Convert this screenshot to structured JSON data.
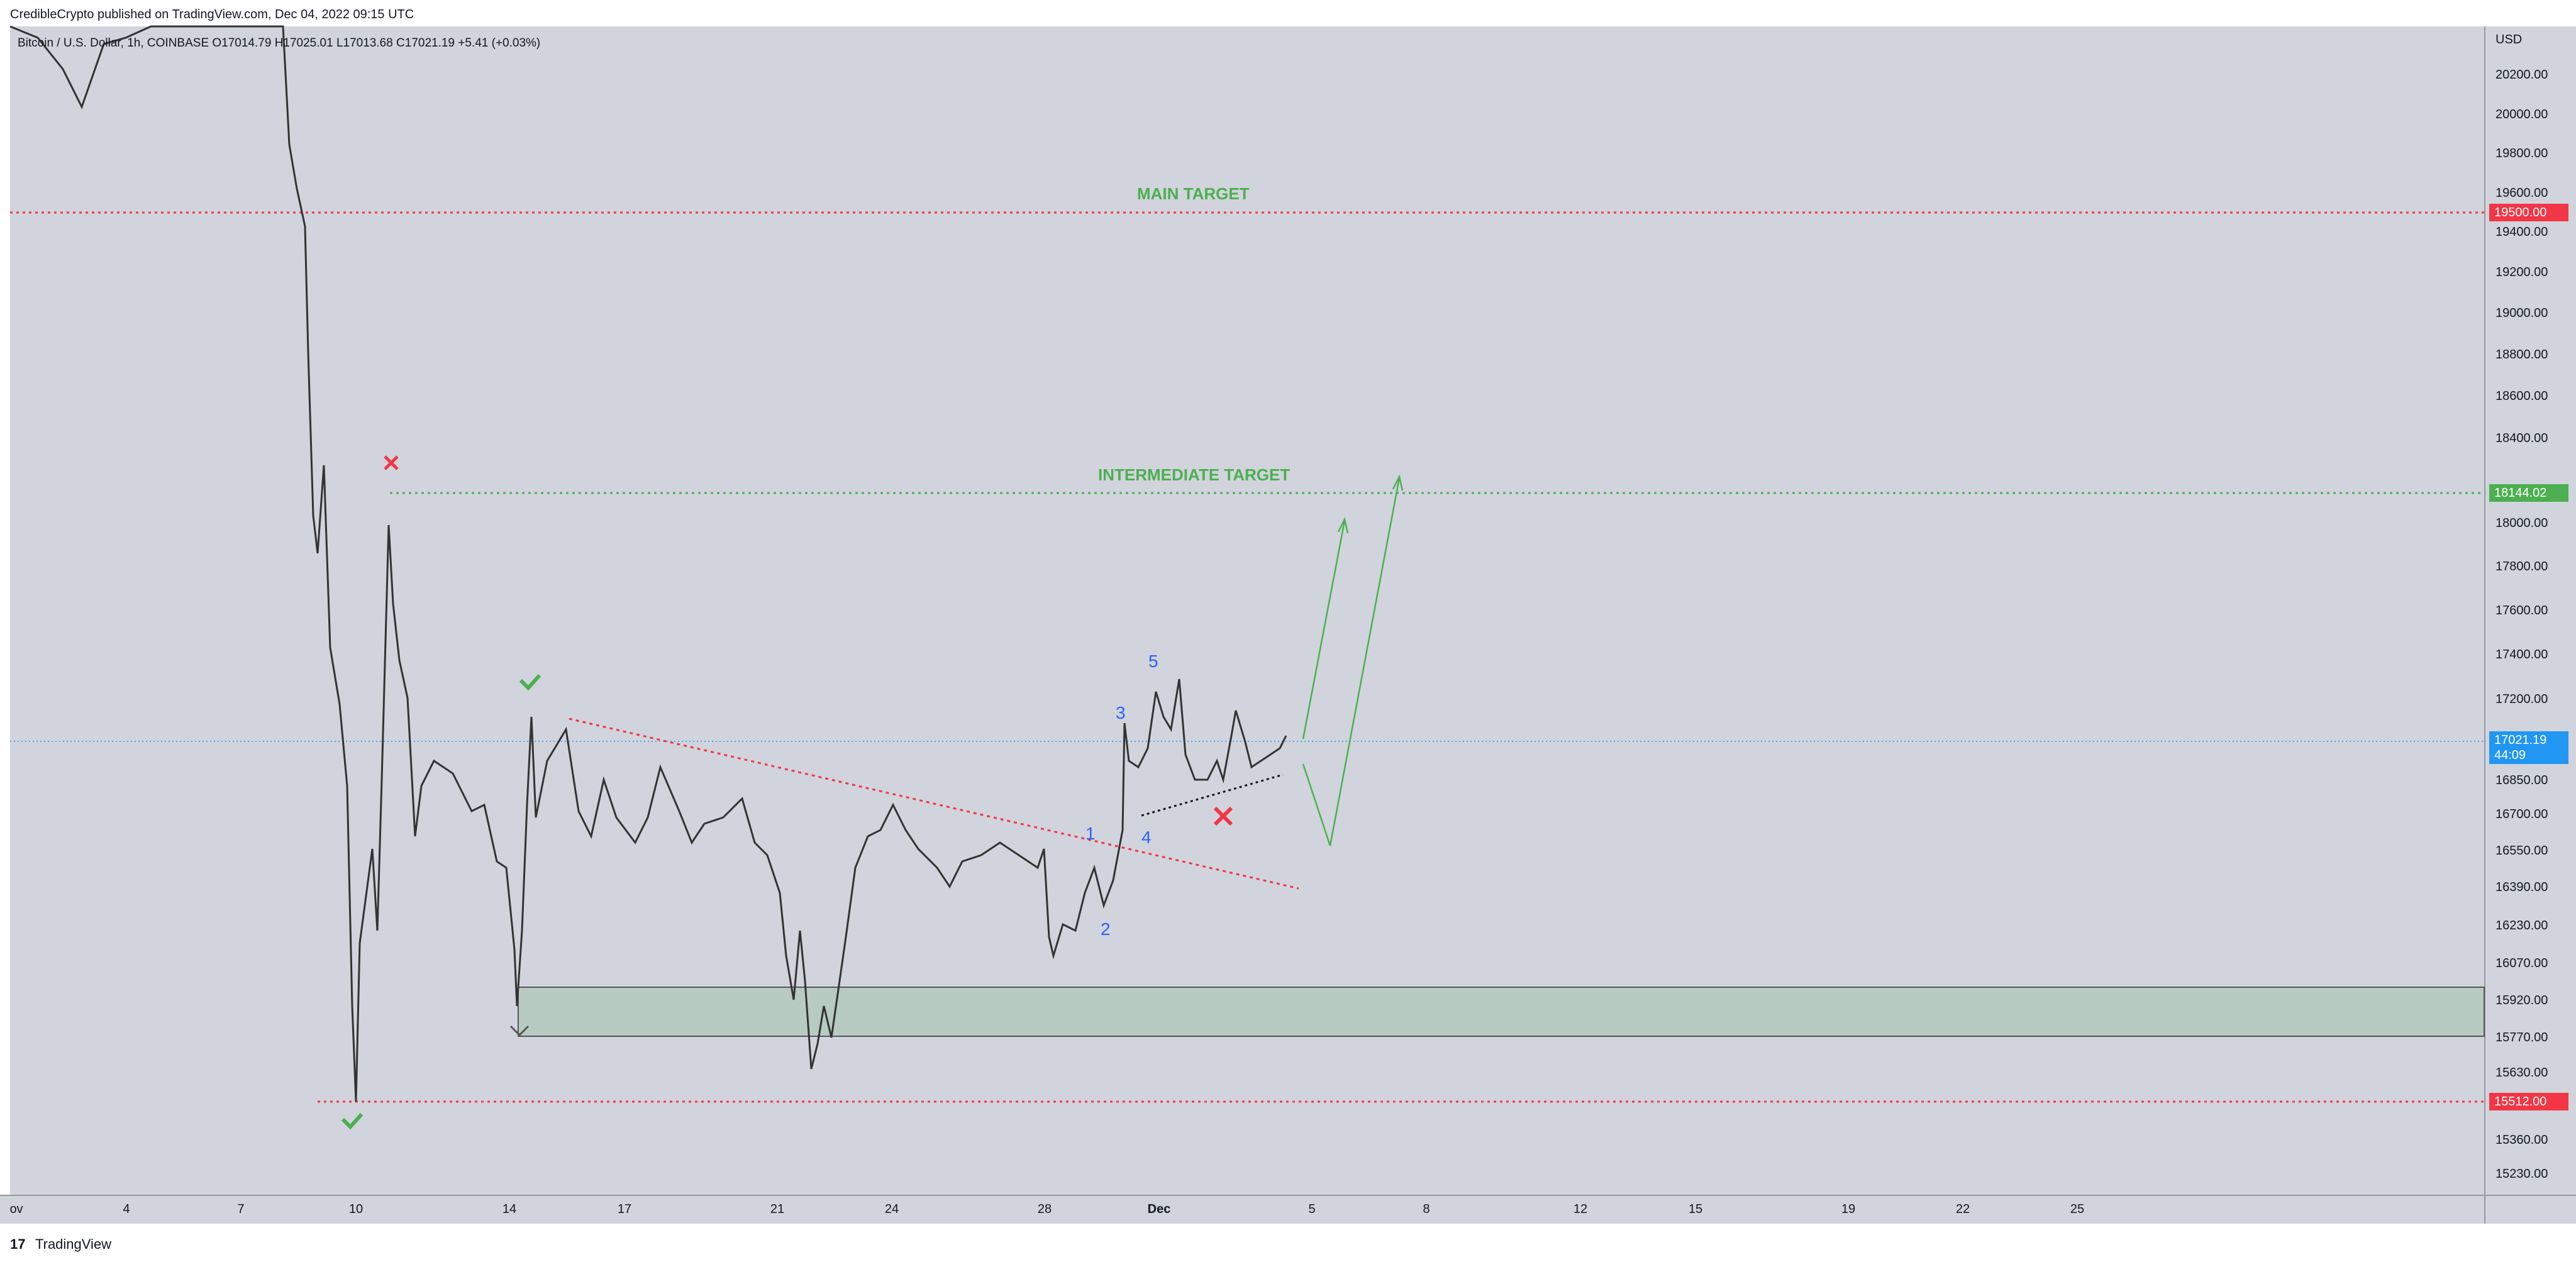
{
  "header": {
    "published_text": "CredibleCrypto published on TradingView.com, Dec 04, 2022 09:15 UTC"
  },
  "legend": {
    "text": "Bitcoin / U.S. Dollar, 1h, COINBASE  O17014.79  H17025.01  L17013.68  C17021.19  +5.41 (+0.03%)"
  },
  "footer": {
    "logo": "17",
    "brand": "TradingView"
  },
  "price_axis": {
    "currency": "USD",
    "ticks": [
      "20200.00",
      "20000.00",
      "19800.00",
      "19600.00",
      "19400.00",
      "19200.00",
      "19000.00",
      "18800.00",
      "18600.00",
      "18400.00",
      "18000.00",
      "17800.00",
      "17600.00",
      "17400.00",
      "17200.00",
      "16850.00",
      "16700.00",
      "16550.00",
      "16390.00",
      "16230.00",
      "16070.00",
      "15920.00",
      "15770.00",
      "15630.00",
      "15360.00",
      "15230.00"
    ],
    "tags": {
      "main_target": "19500.00",
      "intermediate_target": "18144.02",
      "current_price": "17021.19",
      "countdown": "44:09",
      "support": "15512.00"
    }
  },
  "time_axis": {
    "labels": [
      "ov",
      "4",
      "7",
      "10",
      "14",
      "17",
      "21",
      "24",
      "28",
      "Dec",
      "5",
      "8",
      "12",
      "15",
      "19",
      "22",
      "25"
    ]
  },
  "annotations": {
    "main_target_label": "MAIN TARGET",
    "intermediate_target_label": "INTERMEDIATE TARGET",
    "wave_labels": [
      "1",
      "2",
      "3",
      "4",
      "5"
    ]
  },
  "colors": {
    "green": "#4caf50",
    "red": "#f23645",
    "blue": "#2962ff",
    "current": "#2196f3",
    "zone": "#b7cbc1",
    "candle": "#3a3a3a"
  }
}
